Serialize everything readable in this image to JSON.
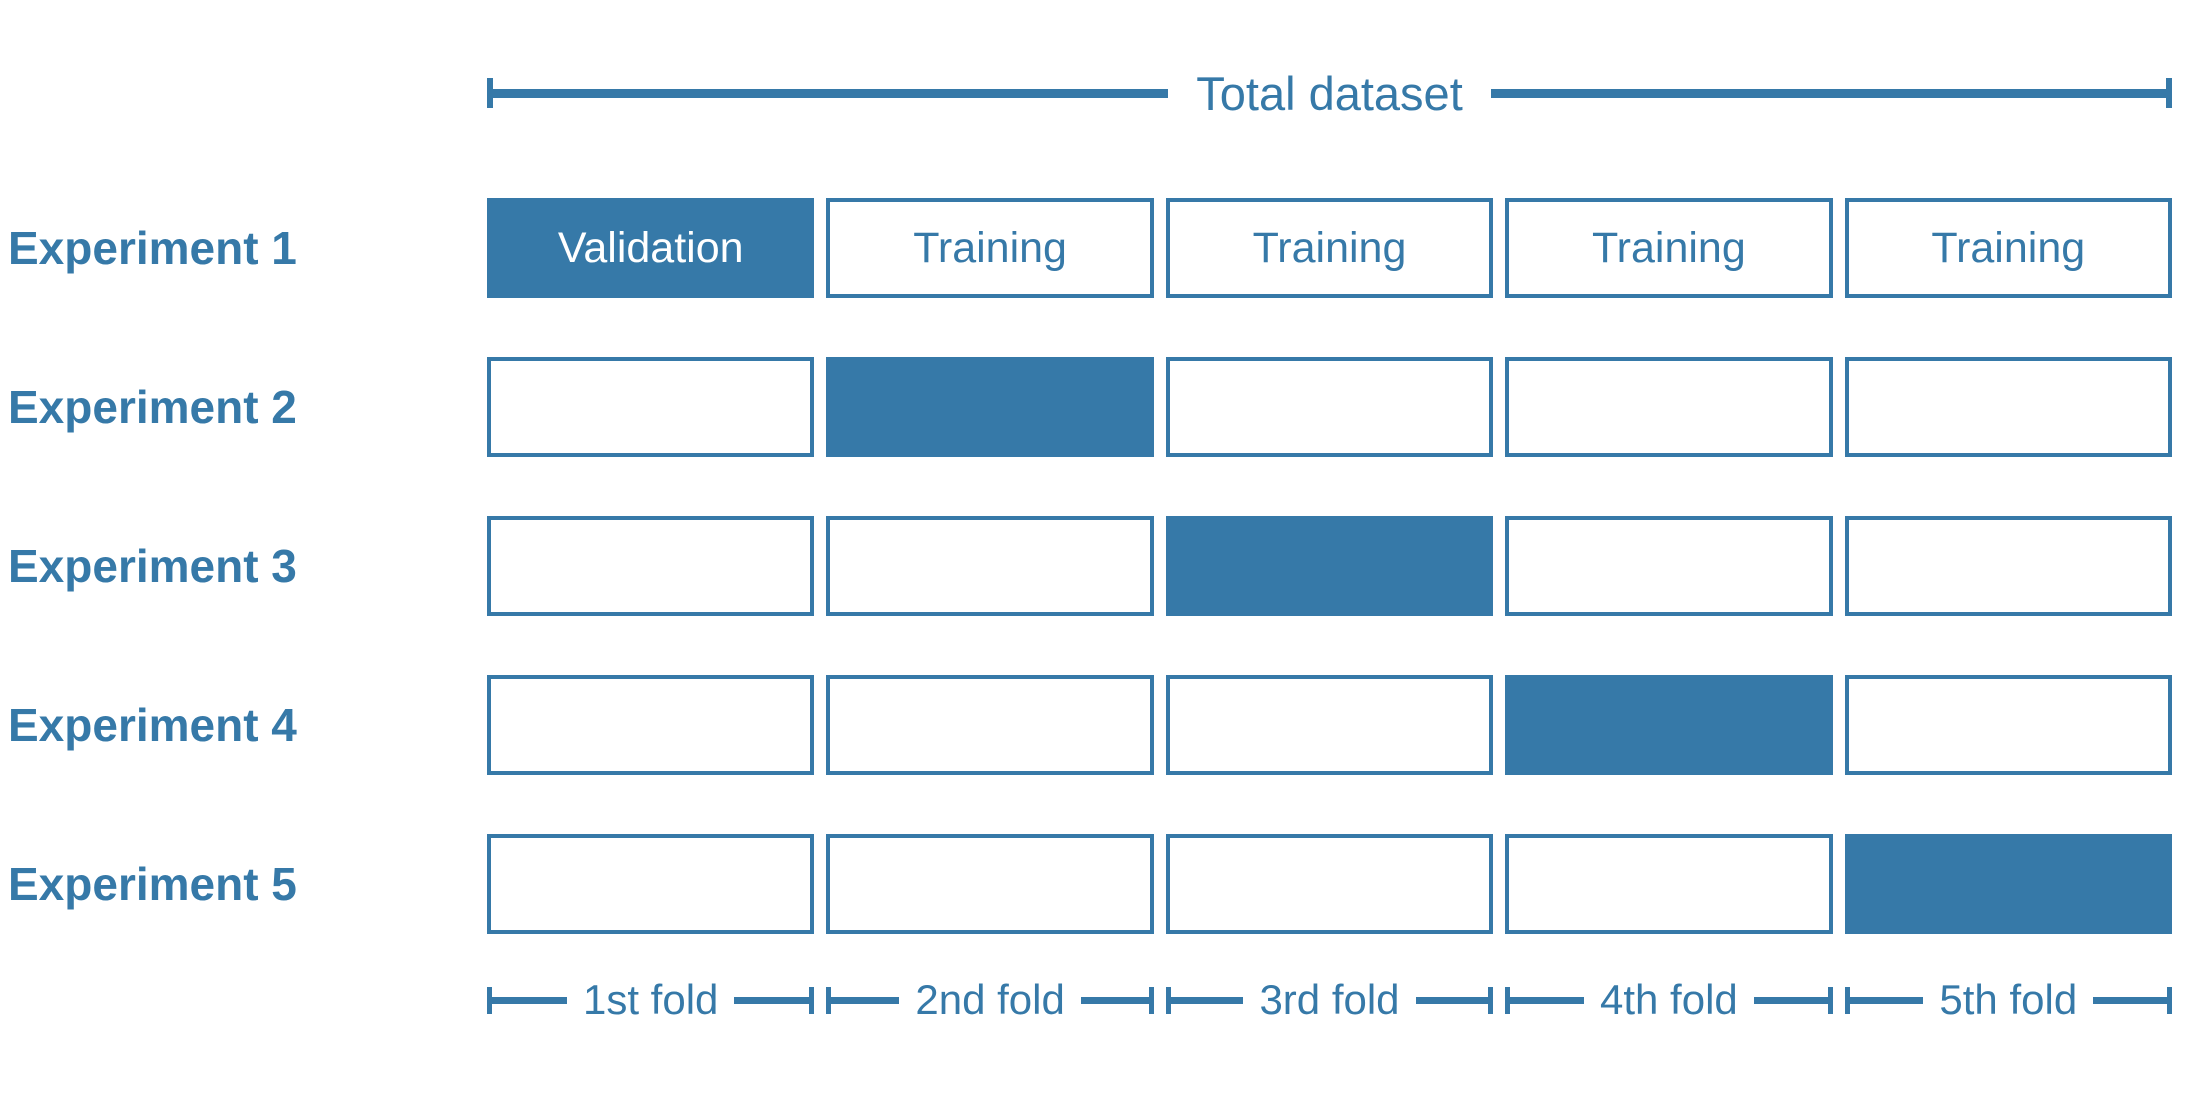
{
  "colors": {
    "accent": "#3679A8",
    "validation_text": "#FFFFFF",
    "background": "#FFFFFF"
  },
  "title": {
    "total_dataset": "Total dataset"
  },
  "experiments": [
    {
      "label": "Experiment 1",
      "cells": [
        {
          "text": "Validation",
          "class": "cell filled"
        },
        {
          "text": "Training",
          "class": "cell"
        },
        {
          "text": "Training",
          "class": "cell"
        },
        {
          "text": "Training",
          "class": "cell"
        },
        {
          "text": "Training",
          "class": "cell"
        }
      ]
    },
    {
      "label": "Experiment 2",
      "cells": [
        {
          "text": "",
          "class": "cell"
        },
        {
          "text": "",
          "class": "cell filled"
        },
        {
          "text": "",
          "class": "cell"
        },
        {
          "text": "",
          "class": "cell"
        },
        {
          "text": "",
          "class": "cell"
        }
      ]
    },
    {
      "label": "Experiment 3",
      "cells": [
        {
          "text": "",
          "class": "cell"
        },
        {
          "text": "",
          "class": "cell"
        },
        {
          "text": "",
          "class": "cell filled"
        },
        {
          "text": "",
          "class": "cell"
        },
        {
          "text": "",
          "class": "cell"
        }
      ]
    },
    {
      "label": "Experiment 4",
      "cells": [
        {
          "text": "",
          "class": "cell"
        },
        {
          "text": "",
          "class": "cell"
        },
        {
          "text": "",
          "class": "cell"
        },
        {
          "text": "",
          "class": "cell filled"
        },
        {
          "text": "",
          "class": "cell"
        }
      ]
    },
    {
      "label": "Experiment 5",
      "cells": [
        {
          "text": "",
          "class": "cell"
        },
        {
          "text": "",
          "class": "cell"
        },
        {
          "text": "",
          "class": "cell"
        },
        {
          "text": "",
          "class": "cell"
        },
        {
          "text": "",
          "class": "cell filled"
        }
      ]
    }
  ],
  "folds": [
    {
      "label": "1st fold"
    },
    {
      "label": "2nd fold"
    },
    {
      "label": "3rd fold"
    },
    {
      "label": "4th fold"
    },
    {
      "label": "5th fold"
    }
  ]
}
